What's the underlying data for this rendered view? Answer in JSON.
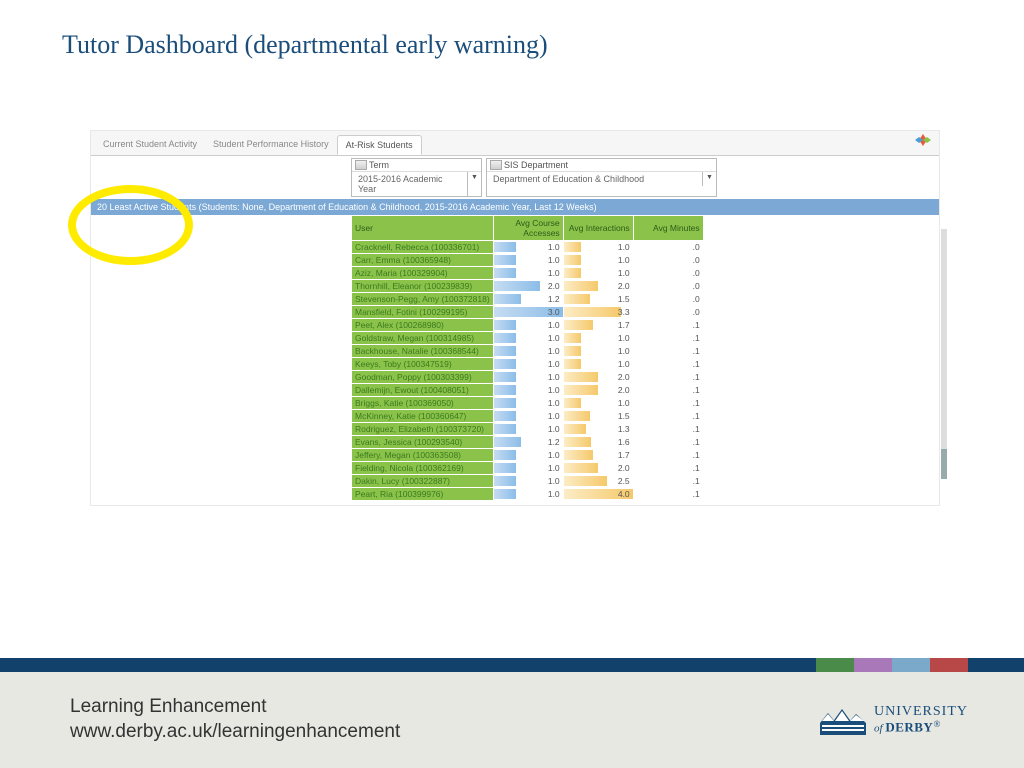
{
  "title": "Tutor Dashboard (departmental early warning)",
  "tabs": [
    "Current Student Activity",
    "Student Performance History",
    "At-Risk Students"
  ],
  "active_tab": 2,
  "filters": {
    "term": {
      "label": "Term",
      "value": "2015-2016 Academic Year"
    },
    "dept": {
      "label": "SIS Department",
      "value": "Department of Education & Childhood"
    }
  },
  "banner": "20 Least Active Students (Students: None, Department of Education & Childhood, 2015-2016 Academic Year, Last 12 Weeks)",
  "columns": [
    "User",
    "Avg Course Accesses",
    "Avg Interactions",
    "Avg Minutes"
  ],
  "max_access": 3.0,
  "max_inter": 4.0,
  "colors": {
    "bar_blue": "#8cbde8",
    "bar_yellow": "#f5c96b",
    "header_green": "#8bc34a",
    "blue_bar": "#7ba8d4"
  },
  "rows": [
    {
      "name": "Cracknell, Rebecca (100336701)",
      "access": "1.0",
      "inter": "1.0",
      "min": ".0",
      "aw": 33,
      "iw": 25
    },
    {
      "name": "Carr, Emma (100365948)",
      "access": "1.0",
      "inter": "1.0",
      "min": ".0",
      "aw": 33,
      "iw": 25
    },
    {
      "name": "Aziz, Maria (100329904)",
      "access": "1.0",
      "inter": "1.0",
      "min": ".0",
      "aw": 33,
      "iw": 25
    },
    {
      "name": "Thornhill, Eleanor (100239839)",
      "access": "2.0",
      "inter": "2.0",
      "min": ".0",
      "aw": 67,
      "iw": 50
    },
    {
      "name": "Stevenson-Pegg, Amy (100372818)",
      "access": "1.2",
      "inter": "1.5",
      "min": ".0",
      "aw": 40,
      "iw": 38
    },
    {
      "name": "Mansfield, Fotini (100299195)",
      "access": "3.0",
      "inter": "3.3",
      "min": ".0",
      "aw": 100,
      "iw": 83
    },
    {
      "name": "Peet, Alex (100268980)",
      "access": "1.0",
      "inter": "1.7",
      "min": ".1",
      "aw": 33,
      "iw": 43
    },
    {
      "name": "Goldstraw, Megan (100314985)",
      "access": "1.0",
      "inter": "1.0",
      "min": ".1",
      "aw": 33,
      "iw": 25
    },
    {
      "name": "Backhouse, Natalie (100368544)",
      "access": "1.0",
      "inter": "1.0",
      "min": ".1",
      "aw": 33,
      "iw": 25
    },
    {
      "name": "Keeys, Toby (100347519)",
      "access": "1.0",
      "inter": "1.0",
      "min": ".1",
      "aw": 33,
      "iw": 25
    },
    {
      "name": "Goodman, Poppy (100303399)",
      "access": "1.0",
      "inter": "2.0",
      "min": ".1",
      "aw": 33,
      "iw": 50
    },
    {
      "name": "Dallemijn, Ewout (100408051)",
      "access": "1.0",
      "inter": "2.0",
      "min": ".1",
      "aw": 33,
      "iw": 50
    },
    {
      "name": "Briggs, Katie (100369050)",
      "access": "1.0",
      "inter": "1.0",
      "min": ".1",
      "aw": 33,
      "iw": 25
    },
    {
      "name": "McKinney, Katie (100360647)",
      "access": "1.0",
      "inter": "1.5",
      "min": ".1",
      "aw": 33,
      "iw": 38
    },
    {
      "name": "Rodriguez, Elizabeth (100373720)",
      "access": "1.0",
      "inter": "1.3",
      "min": ".1",
      "aw": 33,
      "iw": 33
    },
    {
      "name": "Evans, Jessica (100293540)",
      "access": "1.2",
      "inter": "1.6",
      "min": ".1",
      "aw": 40,
      "iw": 40
    },
    {
      "name": "Jeffery, Megan (100363508)",
      "access": "1.0",
      "inter": "1.7",
      "min": ".1",
      "aw": 33,
      "iw": 43
    },
    {
      "name": "Fielding, Nicola (100362169)",
      "access": "1.0",
      "inter": "2.0",
      "min": ".1",
      "aw": 33,
      "iw": 50
    },
    {
      "name": "Dakin, Lucy (100322887)",
      "access": "1.0",
      "inter": "2.5",
      "min": ".1",
      "aw": 33,
      "iw": 63
    },
    {
      "name": "Peart, Ria (100399976)",
      "access": "1.0",
      "inter": "4.0",
      "min": ".1",
      "aw": 33,
      "iw": 100
    }
  ],
  "footer": {
    "line1": "Learning Enhancement",
    "line2": "www.derby.ac.uk/learningenhancement",
    "uni1": "UNIVERSITY",
    "uni2_prefix": "of ",
    "uni2": "DERBY",
    "reg": "®"
  }
}
